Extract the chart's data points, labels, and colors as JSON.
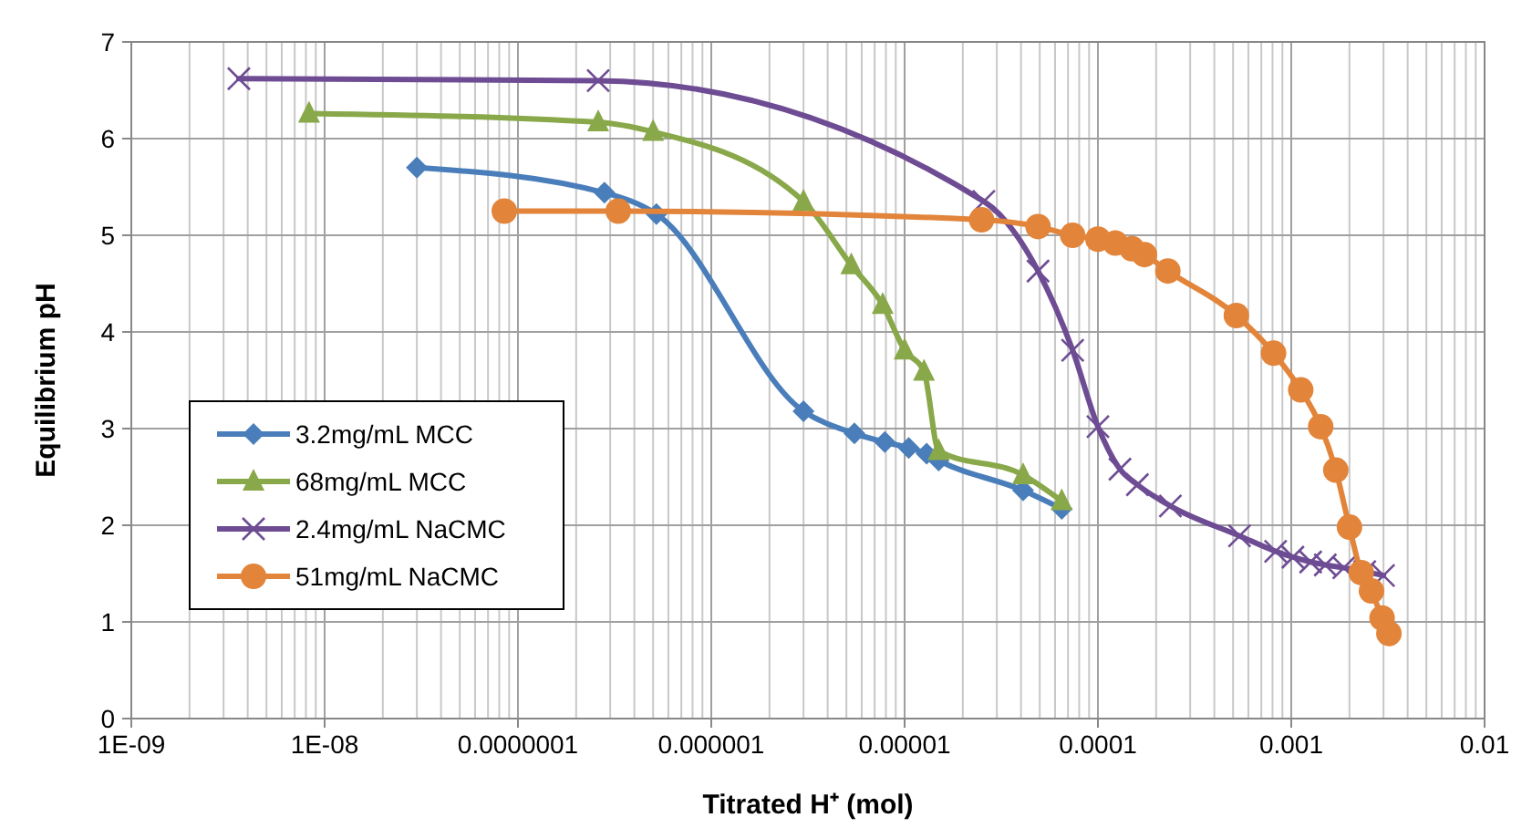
{
  "chart_data": {
    "type": "line",
    "xlabel": "Titrated H⁺ (mol)",
    "ylabel": "Equilibrium pH",
    "log": "x",
    "grid": true,
    "legend": "bottom left",
    "line_style": "solid",
    "xlim": [
      1e-09,
      0.01
    ],
    "xticks": [
      {
        "value": 1e-09,
        "label": "1E-09"
      },
      {
        "value": 1e-08,
        "label": "1E-08"
      },
      {
        "value": 1e-07,
        "label": "0.0000001"
      },
      {
        "value": 1e-06,
        "label": "0.000001"
      },
      {
        "value": 1e-05,
        "label": "0.00001"
      },
      {
        "value": 0.0001,
        "label": "0.0001"
      },
      {
        "value": 0.001,
        "label": "0.001"
      },
      {
        "value": 0.01,
        "label": "0.01"
      }
    ],
    "ylim": [
      0,
      7
    ],
    "yticks": [
      0,
      1,
      2,
      3,
      4,
      5,
      6,
      7
    ],
    "series": [
      {
        "name": "3.2mg/mL MCC",
        "color": "#4a7ebb",
        "marker": "diamond",
        "x": [
          3e-08,
          2.8e-07,
          5.2e-07,
          3e-06,
          5.5e-06,
          7.9e-06,
          1.05e-05,
          1.3e-05,
          1.5e-05,
          4.1e-05,
          6.5e-05
        ],
        "values": [
          5.7,
          5.44,
          5.22,
          3.18,
          2.95,
          2.86,
          2.8,
          2.74,
          2.67,
          2.36,
          2.17
        ]
      },
      {
        "name": "68mg/mL MCC",
        "color": "#88a84a",
        "marker": "triangle",
        "x": [
          8.3e-09,
          2.6e-07,
          5e-07,
          3e-06,
          5.3e-06,
          7.7e-06,
          1e-05,
          1.26e-05,
          1.5e-05,
          4.1e-05,
          6.5e-05
        ],
        "values": [
          6.26,
          6.17,
          6.07,
          5.35,
          4.69,
          4.28,
          3.81,
          3.59,
          2.77,
          2.52,
          2.25
        ]
      },
      {
        "name": "2.4mg/mL NaCMC",
        "color": "#6e4c93",
        "marker": "cross",
        "x": [
          3.6e-09,
          2.6e-07,
          2.57e-05,
          4.9e-05,
          7.4e-05,
          0.0001,
          0.00013,
          0.00016,
          0.000237,
          0.00054,
          0.00083,
          0.00102,
          0.00126,
          0.0015,
          0.00187,
          0.0024,
          0.003
        ],
        "values": [
          6.62,
          6.6,
          5.35,
          4.63,
          3.81,
          3.02,
          2.58,
          2.42,
          2.2,
          1.89,
          1.73,
          1.67,
          1.62,
          1.59,
          1.56,
          1.52,
          1.48
        ]
      },
      {
        "name": "51mg/mL NaCMC",
        "color": "#e2843a",
        "marker": "circle",
        "x": [
          8.5e-08,
          3.3e-07,
          2.5e-05,
          4.9e-05,
          7.4e-05,
          0.0001,
          0.000123,
          0.00015,
          0.000174,
          0.00023,
          0.00052,
          0.00081,
          0.00112,
          0.00142,
          0.0017,
          0.002,
          0.0023,
          0.0026,
          0.00295,
          0.0032
        ],
        "values": [
          5.25,
          5.25,
          5.16,
          5.09,
          5.0,
          4.96,
          4.92,
          4.86,
          4.8,
          4.63,
          4.17,
          3.78,
          3.4,
          3.02,
          2.57,
          1.98,
          1.51,
          1.32,
          1.04,
          0.88
        ]
      }
    ]
  }
}
